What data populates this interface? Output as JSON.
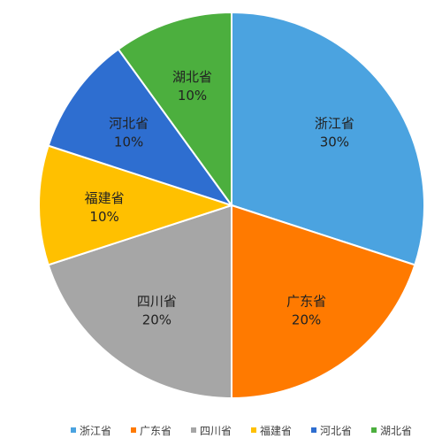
{
  "chart_data": {
    "type": "pie",
    "title": "",
    "categories": [
      "浙江省",
      "广东省",
      "四川省",
      "福建省",
      "河北省",
      "湖北省"
    ],
    "values": [
      30,
      20,
      20,
      10,
      10,
      10
    ],
    "value_labels": [
      "30%",
      "20%",
      "20%",
      "10%",
      "10%",
      "10%"
    ],
    "colors": [
      "#4BA3E0",
      "#FF7A00",
      "#A6A6A6",
      "#FFC000",
      "#2E6ED0",
      "#4CAF3E"
    ],
    "start_angle_deg": 0,
    "direction": "clockwise",
    "legend_position": "bottom",
    "slice_border_color": "#ffffff"
  }
}
